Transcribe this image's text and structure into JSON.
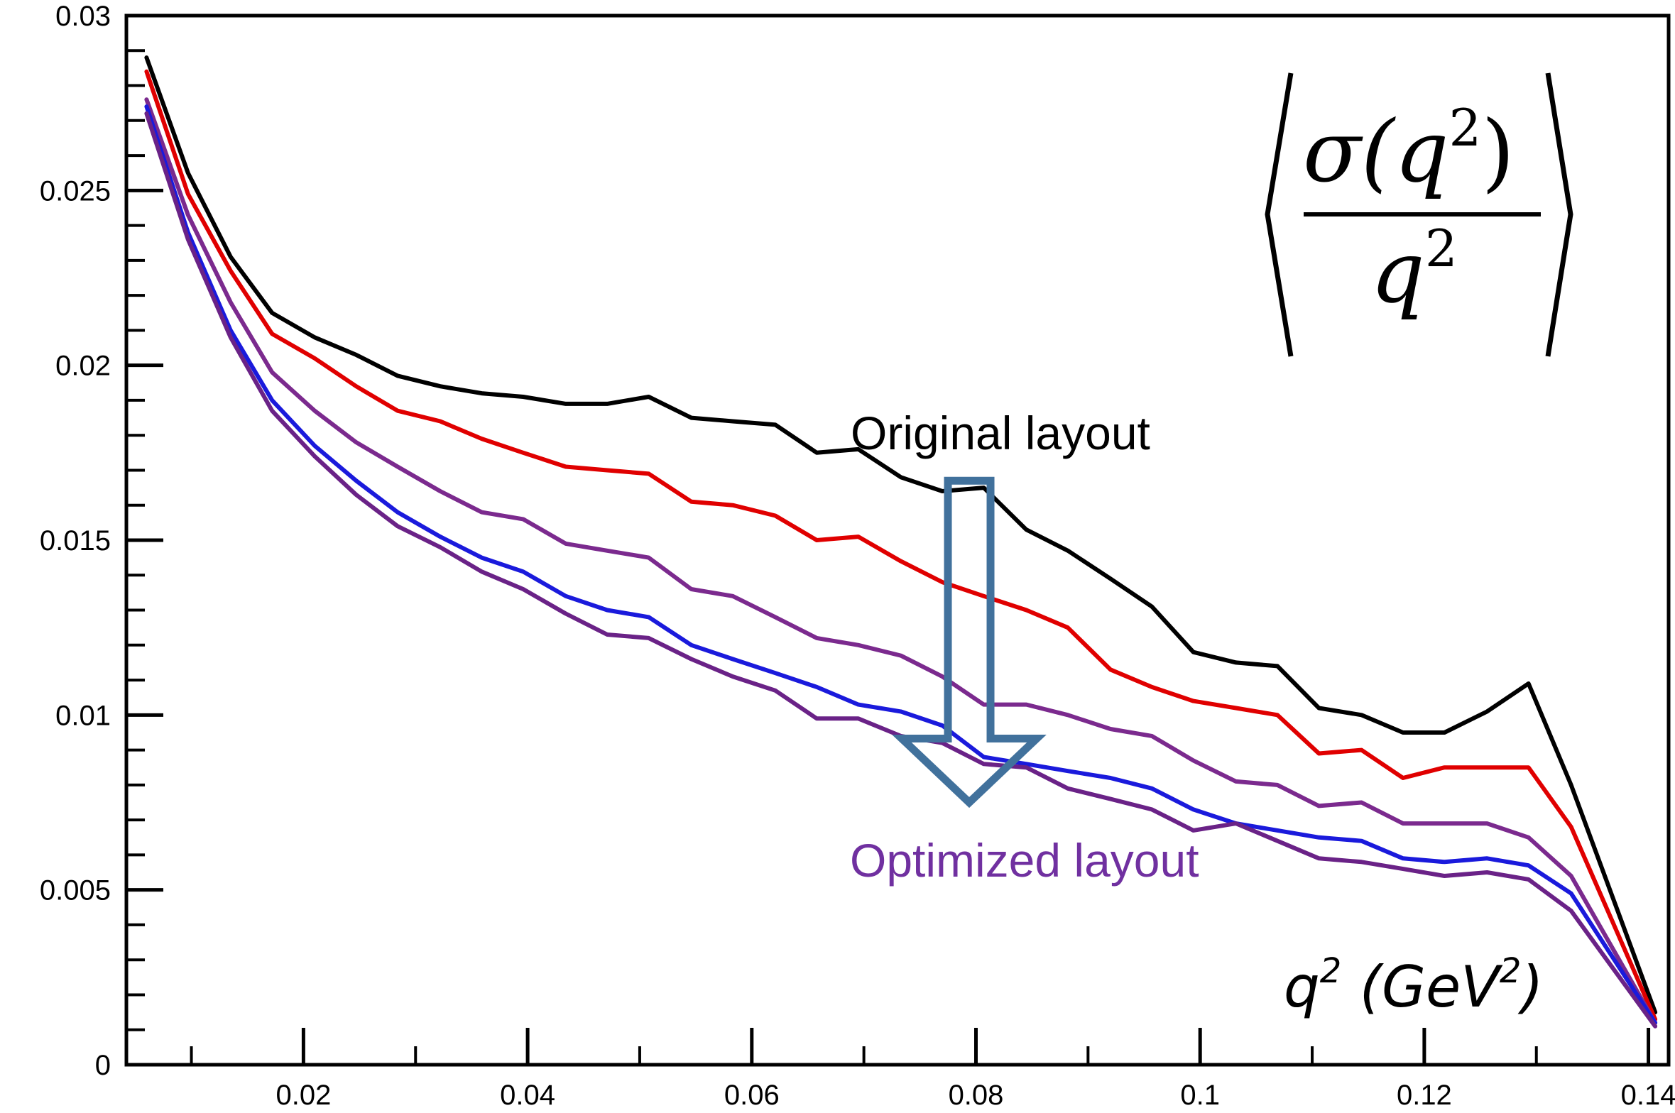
{
  "chart_data": {
    "type": "line",
    "title": "",
    "xlabel": "",
    "ylabel": "",
    "xlim": [
      0.0042,
      0.1418
    ],
    "ylim": [
      0,
      0.03
    ],
    "x_ticks": [
      0.02,
      0.04,
      0.06,
      0.08,
      0.1,
      0.12,
      0.14
    ],
    "x_tick_labels": [
      "0.02",
      "0.04",
      "0.06",
      "0.08",
      "0.1",
      "0.12",
      "0.14"
    ],
    "y_ticks": [
      0,
      0.005,
      0.01,
      0.015,
      0.02,
      0.025,
      0.03
    ],
    "y_tick_labels": [
      "0",
      "0.005",
      "0.01",
      "0.015",
      "0.02",
      "0.025",
      "0.03"
    ],
    "grid": false,
    "legend": "none",
    "x": [
      0.006,
      0.0097,
      0.0135,
      0.0172,
      0.021,
      0.0247,
      0.0284,
      0.0322,
      0.0359,
      0.0396,
      0.0434,
      0.0471,
      0.0508,
      0.0546,
      0.0583,
      0.0621,
      0.0658,
      0.0695,
      0.0733,
      0.077,
      0.0807,
      0.0845,
      0.0882,
      0.092,
      0.0957,
      0.0994,
      0.1032,
      0.1069,
      0.1106,
      0.1144,
      0.1181,
      0.1218,
      0.1256,
      0.1293,
      0.1331,
      0.1406
    ],
    "series": [
      {
        "color": "#000000",
        "values": [
          0.0288,
          0.0255,
          0.0231,
          0.0215,
          0.0208,
          0.0203,
          0.0197,
          0.0194,
          0.0192,
          0.0191,
          0.0189,
          0.0189,
          0.0191,
          0.0185,
          0.0184,
          0.0183,
          0.0175,
          0.0176,
          0.0168,
          0.0164,
          0.0165,
          0.0153,
          0.0147,
          0.0139,
          0.0131,
          0.0118,
          0.0115,
          0.0114,
          0.0102,
          0.01,
          0.0095,
          0.0095,
          0.0101,
          0.0109,
          0.008,
          0.0015
        ]
      },
      {
        "color": "#e00000",
        "values": [
          0.0284,
          0.0249,
          0.0227,
          0.0209,
          0.0202,
          0.0194,
          0.0187,
          0.0184,
          0.0179,
          0.0175,
          0.0171,
          0.017,
          0.0169,
          0.0161,
          0.016,
          0.0157,
          0.015,
          0.0151,
          0.0144,
          0.0138,
          0.0134,
          0.013,
          0.0125,
          0.0113,
          0.0108,
          0.0104,
          0.0102,
          0.01,
          0.0089,
          0.009,
          0.0082,
          0.0085,
          0.0085,
          0.0085,
          0.0068,
          0.0013
        ]
      },
      {
        "color": "#7b2a8e",
        "values": [
          0.0276,
          0.0243,
          0.0218,
          0.0198,
          0.0187,
          0.0178,
          0.0171,
          0.0164,
          0.0158,
          0.0156,
          0.0149,
          0.0147,
          0.0145,
          0.0136,
          0.0134,
          0.0128,
          0.0122,
          0.012,
          0.0117,
          0.0111,
          0.0103,
          0.0103,
          0.01,
          0.0096,
          0.0094,
          0.0087,
          0.0081,
          0.008,
          0.0074,
          0.0075,
          0.0069,
          0.0069,
          0.0069,
          0.0065,
          0.0054,
          0.0012
        ]
      },
      {
        "color": "#1a1adc",
        "values": [
          0.0274,
          0.0238,
          0.021,
          0.019,
          0.0177,
          0.0167,
          0.0158,
          0.0151,
          0.0145,
          0.0141,
          0.0134,
          0.013,
          0.0128,
          0.012,
          0.0116,
          0.0112,
          0.0108,
          0.0103,
          0.0101,
          0.0097,
          0.0088,
          0.0086,
          0.0084,
          0.0082,
          0.0079,
          0.0073,
          0.0069,
          0.0067,
          0.0065,
          0.0064,
          0.0059,
          0.0058,
          0.0059,
          0.0057,
          0.0049,
          0.0012
        ]
      },
      {
        "color": "#6a2287",
        "values": [
          0.0272,
          0.0236,
          0.0208,
          0.0187,
          0.0174,
          0.0163,
          0.0154,
          0.0148,
          0.0141,
          0.0136,
          0.0129,
          0.0123,
          0.0122,
          0.0116,
          0.0111,
          0.0107,
          0.0099,
          0.0099,
          0.0094,
          0.0092,
          0.0086,
          0.0085,
          0.0079,
          0.0076,
          0.0073,
          0.0067,
          0.0069,
          0.0064,
          0.0059,
          0.0058,
          0.0056,
          0.0054,
          0.0055,
          0.0053,
          0.0044,
          0.0011
        ]
      }
    ],
    "annotations": {
      "original": "Original layout",
      "optimized": "Optimized layout",
      "axis_unit_q": "q",
      "axis_unit_sup": "2",
      "axis_unit_open": " (GeV",
      "axis_unit_close": ")",
      "formula_sigma": "σ(q",
      "formula_close": ")",
      "formula_den": "q",
      "formula_exp": "2"
    },
    "arrow": {
      "from_label": "original",
      "to_label": "optimized",
      "color": "#41719c",
      "x": 0.0794,
      "y_top": 0.0167,
      "y_bottom": 0.0075
    }
  }
}
